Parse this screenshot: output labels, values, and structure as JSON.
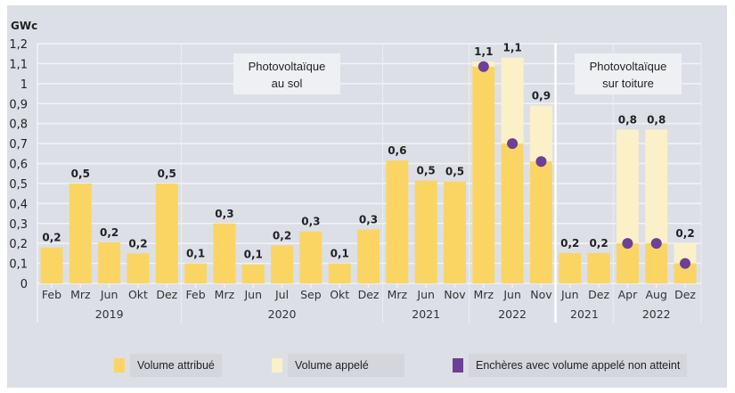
{
  "chart_data": {
    "type": "bar",
    "ylabel": "GWc",
    "ylim": [
      0,
      1.2
    ],
    "yticks": [
      "0",
      "0,1",
      "0,2",
      "0,3",
      "0,4",
      "0,5",
      "0,6",
      "0,7",
      "0,8",
      "0,9",
      "1",
      "1,1",
      "1,2"
    ],
    "grid": true,
    "sections": [
      "Photovoltaïque\nau sol",
      "Photovoltaïque\nsur toiture"
    ],
    "section_labels": [
      [
        "Photovoltaïque",
        "au sol"
      ],
      [
        "Photovoltaïque",
        "sur toiture"
      ]
    ],
    "groups": [
      {
        "section": 0,
        "year": "2019",
        "months": [
          "Feb",
          "Mrz",
          "Jun",
          "Okt",
          "Dez"
        ]
      },
      {
        "section": 0,
        "year": "2020",
        "months": [
          "Feb",
          "Mrz",
          "Jun",
          "Jul",
          "Sep",
          "Okt",
          "Dez"
        ]
      },
      {
        "section": 0,
        "year": "2021",
        "months": [
          "Mrz",
          "Jun",
          "Nov"
        ]
      },
      {
        "section": 0,
        "year": "2022",
        "months": [
          "Mrz",
          "Jun",
          "Nov"
        ]
      },
      {
        "section": 1,
        "year": "2021",
        "months": [
          "Jun",
          "Dez"
        ]
      },
      {
        "section": 1,
        "year": "2022",
        "months": [
          "Apr",
          "Aug",
          "Dez"
        ]
      }
    ],
    "series": [
      {
        "name": "Volume attribué",
        "color": "#fad564",
        "values": [
          0.18,
          0.5,
          0.205,
          0.15,
          0.5,
          0.1,
          0.3,
          0.095,
          0.19,
          0.26,
          0.1,
          0.27,
          0.615,
          0.515,
          0.51,
          1.085,
          0.7,
          0.61,
          0.152,
          0.152,
          0.2,
          0.2,
          0.1
        ]
      },
      {
        "name": "Volume appelé",
        "color": "#fbf0c8",
        "values": [
          null,
          null,
          null,
          null,
          null,
          null,
          null,
          null,
          null,
          null,
          null,
          null,
          null,
          null,
          null,
          1.11,
          1.13,
          0.89,
          null,
          null,
          0.77,
          0.77,
          0.2
        ]
      },
      {
        "name": "Enchères avec volume appelé non atteint",
        "color": "#6e3f96",
        "values": [
          null,
          null,
          null,
          null,
          null,
          null,
          null,
          null,
          null,
          null,
          null,
          null,
          null,
          null,
          null,
          1.085,
          0.7,
          0.61,
          null,
          null,
          0.2,
          0.2,
          0.1
        ]
      }
    ],
    "data_labels": [
      "0,2",
      "0,5",
      "0,2",
      "0,2",
      "0,5",
      "0,1",
      "0,3",
      "0,1",
      "0,2",
      "0,3",
      "0,1",
      "0,3",
      "0,6",
      "0,5",
      "0,5",
      "1,1",
      "1,1",
      "0,9",
      "0,2",
      "0,2",
      "0,8",
      "0,8",
      "0,2"
    ],
    "legend": {
      "placement": "bottom",
      "items": [
        "Volume attribué",
        "Volume appelé",
        "Enchères avec volume appelé non atteint"
      ]
    }
  }
}
